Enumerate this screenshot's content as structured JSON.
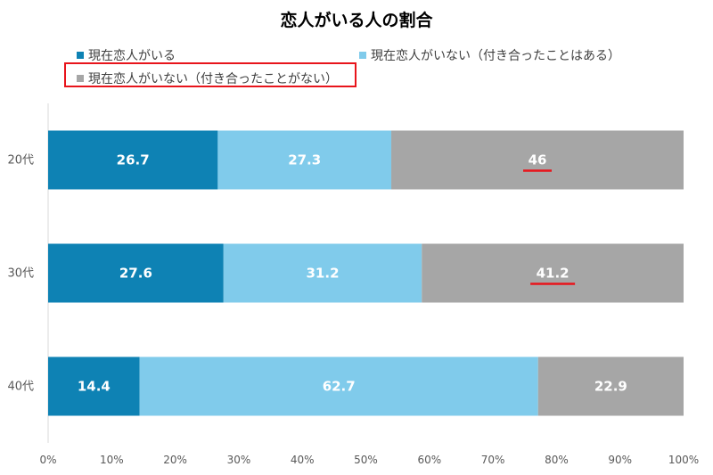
{
  "title": "恋人がいる人の割合",
  "colors": {
    "in_relationship": "#0e82b4",
    "dated_before": "#80cbeb",
    "never_dated": "#a6a6a6",
    "highlight": "#e8141b"
  },
  "legend": [
    {
      "label": "現在恋人がいる"
    },
    {
      "label": "現在恋人がいない（付き合ったことはある）"
    },
    {
      "label": "現在恋人がいない（付き合ったことがない）"
    }
  ],
  "chart_data": {
    "type": "bar",
    "orientation": "horizontal",
    "stacked": true,
    "title": "恋人がいる人の割合",
    "categories": [
      "20代",
      "30代",
      "40代"
    ],
    "series": [
      {
        "name": "現在恋人がいる",
        "values": [
          26.7,
          27.6,
          14.4
        ]
      },
      {
        "name": "現在恋人がいない（付き合ったことはある）",
        "values": [
          27.3,
          31.2,
          62.7
        ]
      },
      {
        "name": "現在恋人がいない（付き合ったことがない）",
        "values": [
          46,
          41.2,
          22.9
        ]
      }
    ],
    "xlim": [
      0,
      100
    ],
    "x_ticks": [
      "0%",
      "10%",
      "20%",
      "30%",
      "40%",
      "50%",
      "60%",
      "70%",
      "80%",
      "90%",
      "100%"
    ],
    "grid": false,
    "legend_position": "top-left"
  }
}
